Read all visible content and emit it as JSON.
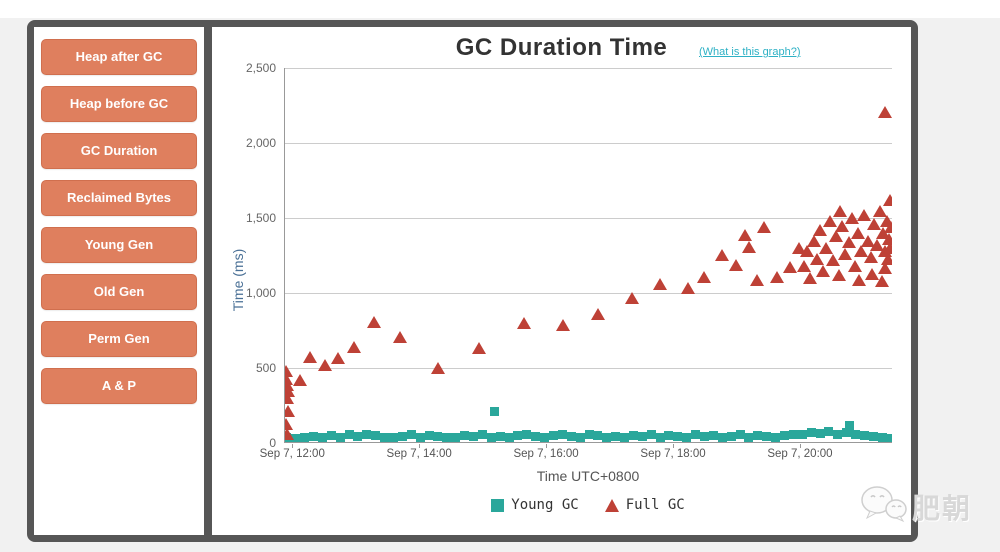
{
  "sidebar": {
    "buttons": [
      {
        "label": "Heap after GC"
      },
      {
        "label": "Heap before GC"
      },
      {
        "label": "GC Duration"
      },
      {
        "label": "Reclaimed Bytes"
      },
      {
        "label": "Young Gen"
      },
      {
        "label": "Old Gen"
      },
      {
        "label": "Perm Gen"
      },
      {
        "label": "A & P"
      }
    ]
  },
  "header": {
    "title": "GC Duration Time",
    "help_link": "(What is this graph?)"
  },
  "watermark": {
    "text": "肥朝"
  },
  "colors": {
    "young_gc": "#2aa79b",
    "full_gc": "#be4136",
    "button": "#df7f5e",
    "frame": "#565656",
    "link": "#2eb1c5",
    "y_axis_title": "#4a7096"
  },
  "chart_data": {
    "type": "scatter",
    "title": "GC Duration Time",
    "xlabel": "Time UTC+0800",
    "ylabel": "Time (ms)",
    "ylim": [
      0,
      2500
    ],
    "x_domain_hours": [
      11.87,
      21.45
    ],
    "grid_values": [
      500,
      1000,
      1500,
      2000,
      2500
    ],
    "y_ticks": [
      {
        "v": 0,
        "label": "0"
      },
      {
        "v": 500,
        "label": "500"
      },
      {
        "v": 1000,
        "label": "1,000"
      },
      {
        "v": 1500,
        "label": "1,500"
      },
      {
        "v": 2000,
        "label": "2,000"
      },
      {
        "v": 2500,
        "label": "2,500"
      }
    ],
    "x_ticks": [
      {
        "h": 12,
        "label": "Sep 7, 12:00"
      },
      {
        "h": 14,
        "label": "Sep 7, 14:00"
      },
      {
        "h": 16,
        "label": "Sep 7, 16:00"
      },
      {
        "h": 18,
        "label": "Sep 7, 18:00"
      },
      {
        "h": 20,
        "label": "Sep 7, 20:00"
      }
    ],
    "legend_position": "bottom",
    "grid": true,
    "legend": [
      {
        "name": "Young GC",
        "color": "#2aa79b",
        "marker": "square"
      },
      {
        "name": "Full GC",
        "color": "#be4136",
        "marker": "triangle"
      }
    ],
    "series": [
      {
        "name": "Young GC",
        "marker": "square",
        "points": [
          [
            11.9,
            35
          ],
          [
            12.04,
            30
          ],
          [
            12.18,
            40
          ],
          [
            12.32,
            45
          ],
          [
            12.46,
            35
          ],
          [
            12.6,
            50
          ],
          [
            12.74,
            40
          ],
          [
            12.88,
            55
          ],
          [
            13.02,
            45
          ],
          [
            13.16,
            60
          ],
          [
            13.3,
            50
          ],
          [
            13.44,
            40
          ],
          [
            13.58,
            35
          ],
          [
            13.72,
            45
          ],
          [
            13.86,
            55
          ],
          [
            14.0,
            40
          ],
          [
            14.14,
            50
          ],
          [
            14.28,
            45
          ],
          [
            14.42,
            35
          ],
          [
            14.56,
            40
          ],
          [
            14.7,
            50
          ],
          [
            14.84,
            45
          ],
          [
            14.98,
            55
          ],
          [
            15.12,
            40
          ],
          [
            15.17,
            210
          ],
          [
            15.26,
            45
          ],
          [
            15.4,
            35
          ],
          [
            15.54,
            50
          ],
          [
            15.68,
            55
          ],
          [
            15.82,
            45
          ],
          [
            15.96,
            40
          ],
          [
            16.1,
            50
          ],
          [
            16.24,
            60
          ],
          [
            16.38,
            45
          ],
          [
            16.52,
            40
          ],
          [
            16.66,
            55
          ],
          [
            16.8,
            50
          ],
          [
            16.94,
            40
          ],
          [
            17.08,
            45
          ],
          [
            17.22,
            35
          ],
          [
            17.36,
            50
          ],
          [
            17.5,
            45
          ],
          [
            17.64,
            55
          ],
          [
            17.78,
            40
          ],
          [
            17.92,
            50
          ],
          [
            18.06,
            45
          ],
          [
            18.2,
            40
          ],
          [
            18.34,
            55
          ],
          [
            18.48,
            45
          ],
          [
            18.62,
            50
          ],
          [
            18.76,
            40
          ],
          [
            18.9,
            45
          ],
          [
            19.04,
            55
          ],
          [
            19.18,
            40
          ],
          [
            19.32,
            50
          ],
          [
            19.46,
            45
          ],
          [
            19.6,
            40
          ],
          [
            19.74,
            50
          ],
          [
            19.88,
            55
          ],
          [
            20.02,
            60
          ],
          [
            20.16,
            70
          ],
          [
            20.3,
            65
          ],
          [
            20.44,
            75
          ],
          [
            20.58,
            60
          ],
          [
            20.72,
            70
          ],
          [
            20.77,
            120
          ],
          [
            20.86,
            55
          ],
          [
            21.0,
            50
          ],
          [
            21.14,
            45
          ],
          [
            21.28,
            40
          ],
          [
            21.42,
            30
          ]
        ]
      },
      {
        "name": "Full GC",
        "marker": "triangle",
        "points": [
          [
            11.88,
            480
          ],
          [
            11.89,
            430
          ],
          [
            11.9,
            390
          ],
          [
            11.92,
            345
          ],
          [
            11.9,
            300
          ],
          [
            11.91,
            215
          ],
          [
            11.89,
            130
          ],
          [
            11.9,
            60
          ],
          [
            12.11,
            420
          ],
          [
            12.27,
            575
          ],
          [
            12.5,
            520
          ],
          [
            12.7,
            570
          ],
          [
            12.95,
            640
          ],
          [
            13.27,
            805
          ],
          [
            13.68,
            705
          ],
          [
            14.28,
            500
          ],
          [
            14.93,
            635
          ],
          [
            15.63,
            800
          ],
          [
            16.25,
            790
          ],
          [
            16.8,
            860
          ],
          [
            17.33,
            965
          ],
          [
            17.78,
            1060
          ],
          [
            18.22,
            1035
          ],
          [
            18.47,
            1105
          ],
          [
            18.75,
            1255
          ],
          [
            18.97,
            1185
          ],
          [
            19.12,
            1385
          ],
          [
            19.18,
            1310
          ],
          [
            19.3,
            1090
          ],
          [
            19.42,
            1440
          ],
          [
            19.63,
            1110
          ],
          [
            19.82,
            1175
          ],
          [
            19.97,
            1300
          ],
          [
            20.05,
            1180
          ],
          [
            20.1,
            1280
          ],
          [
            20.15,
            1100
          ],
          [
            20.2,
            1350
          ],
          [
            20.25,
            1230
          ],
          [
            20.3,
            1420
          ],
          [
            20.35,
            1150
          ],
          [
            20.4,
            1300
          ],
          [
            20.45,
            1480
          ],
          [
            20.5,
            1220
          ],
          [
            20.55,
            1380
          ],
          [
            20.6,
            1120
          ],
          [
            20.62,
            1550
          ],
          [
            20.65,
            1450
          ],
          [
            20.7,
            1260
          ],
          [
            20.75,
            1340
          ],
          [
            20.8,
            1500
          ],
          [
            20.85,
            1180
          ],
          [
            20.9,
            1400
          ],
          [
            20.92,
            1090
          ],
          [
            20.95,
            1280
          ],
          [
            21.0,
            1520
          ],
          [
            21.05,
            1350
          ],
          [
            21.1,
            1240
          ],
          [
            21.12,
            1130
          ],
          [
            21.15,
            1460
          ],
          [
            21.2,
            1320
          ],
          [
            21.25,
            1550
          ],
          [
            21.27,
            1080
          ],
          [
            21.3,
            1400
          ],
          [
            21.32,
            1280
          ],
          [
            21.33,
            1170
          ],
          [
            21.35,
            1480
          ],
          [
            21.37,
            1230
          ],
          [
            21.38,
            1360
          ],
          [
            21.4,
            1300
          ],
          [
            21.41,
            1620
          ],
          [
            21.42,
            1440
          ],
          [
            21.33,
            2210
          ]
        ]
      }
    ]
  }
}
